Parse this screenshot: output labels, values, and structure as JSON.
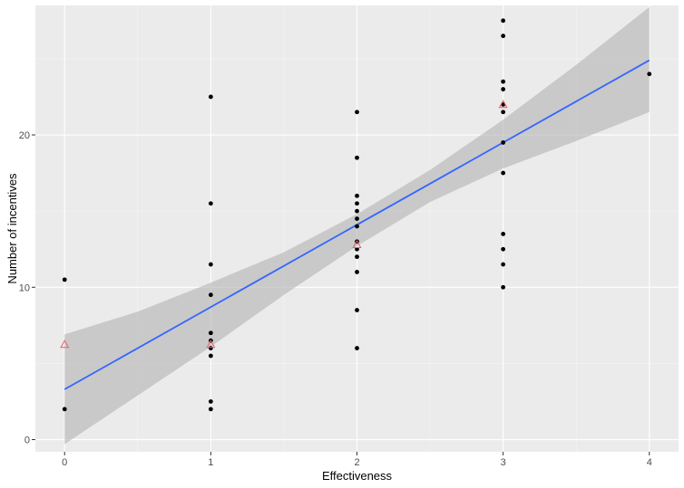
{
  "chart_data": {
    "type": "scatter",
    "xlabel": "Effectiveness",
    "ylabel": "Number of incentives",
    "xlim": [
      -0.2,
      4.2
    ],
    "ylim": [
      -0.8,
      28.5
    ],
    "x_ticks": [
      "0",
      "1",
      "2",
      "3",
      "4"
    ],
    "y_ticks": [
      "0",
      "10",
      "20"
    ],
    "grid": true,
    "panel_color": "#ebebeb",
    "points": [
      {
        "x": 0,
        "y": 10.5
      },
      {
        "x": 0,
        "y": 2
      },
      {
        "x": 1,
        "y": 22.5
      },
      {
        "x": 1,
        "y": 15.5
      },
      {
        "x": 1,
        "y": 11.5
      },
      {
        "x": 1,
        "y": 9.5
      },
      {
        "x": 1,
        "y": 7
      },
      {
        "x": 1,
        "y": 6.5
      },
      {
        "x": 1,
        "y": 6
      },
      {
        "x": 1,
        "y": 5.5
      },
      {
        "x": 1,
        "y": 2.5
      },
      {
        "x": 1,
        "y": 2
      },
      {
        "x": 2,
        "y": 21.5
      },
      {
        "x": 2,
        "y": 18.5
      },
      {
        "x": 2,
        "y": 16
      },
      {
        "x": 2,
        "y": 15.5
      },
      {
        "x": 2,
        "y": 15
      },
      {
        "x": 2,
        "y": 14.5
      },
      {
        "x": 2,
        "y": 14
      },
      {
        "x": 2,
        "y": 13
      },
      {
        "x": 2,
        "y": 12.5
      },
      {
        "x": 2,
        "y": 12
      },
      {
        "x": 2,
        "y": 11
      },
      {
        "x": 2,
        "y": 8.5
      },
      {
        "x": 2,
        "y": 6
      },
      {
        "x": 3,
        "y": 27.5
      },
      {
        "x": 3,
        "y": 26.5
      },
      {
        "x": 3,
        "y": 23.5
      },
      {
        "x": 3,
        "y": 23
      },
      {
        "x": 3,
        "y": 22
      },
      {
        "x": 3,
        "y": 21.5
      },
      {
        "x": 3,
        "y": 19.5
      },
      {
        "x": 3,
        "y": 17.5
      },
      {
        "x": 3,
        "y": 13.5
      },
      {
        "x": 3,
        "y": 12.5
      },
      {
        "x": 3,
        "y": 11.5
      },
      {
        "x": 3,
        "y": 10
      },
      {
        "x": 4,
        "y": 24
      }
    ],
    "mean_markers": [
      {
        "x": 0,
        "y": 6.25
      },
      {
        "x": 1,
        "y": 6.25
      },
      {
        "x": 2,
        "y": 12.8
      },
      {
        "x": 3,
        "y": 22
      }
    ],
    "fit_line": {
      "x": [
        0,
        4
      ],
      "y": [
        3.3,
        24.9
      ],
      "color": "#3366ff"
    },
    "confidence_band": {
      "x": [
        0,
        0.5,
        1,
        1.5,
        2,
        2.5,
        3,
        3.5,
        4
      ],
      "lower": [
        -0.3,
        2.9,
        6.1,
        9.5,
        12.7,
        15.6,
        17.8,
        19.6,
        21.5
      ],
      "upper": [
        6.9,
        8.4,
        10.3,
        12.3,
        14.8,
        17.7,
        21.0,
        24.6,
        28.4
      ],
      "color": "#b3b3b3"
    },
    "point_color": "#000000",
    "mean_marker_color": "#e8616b"
  }
}
